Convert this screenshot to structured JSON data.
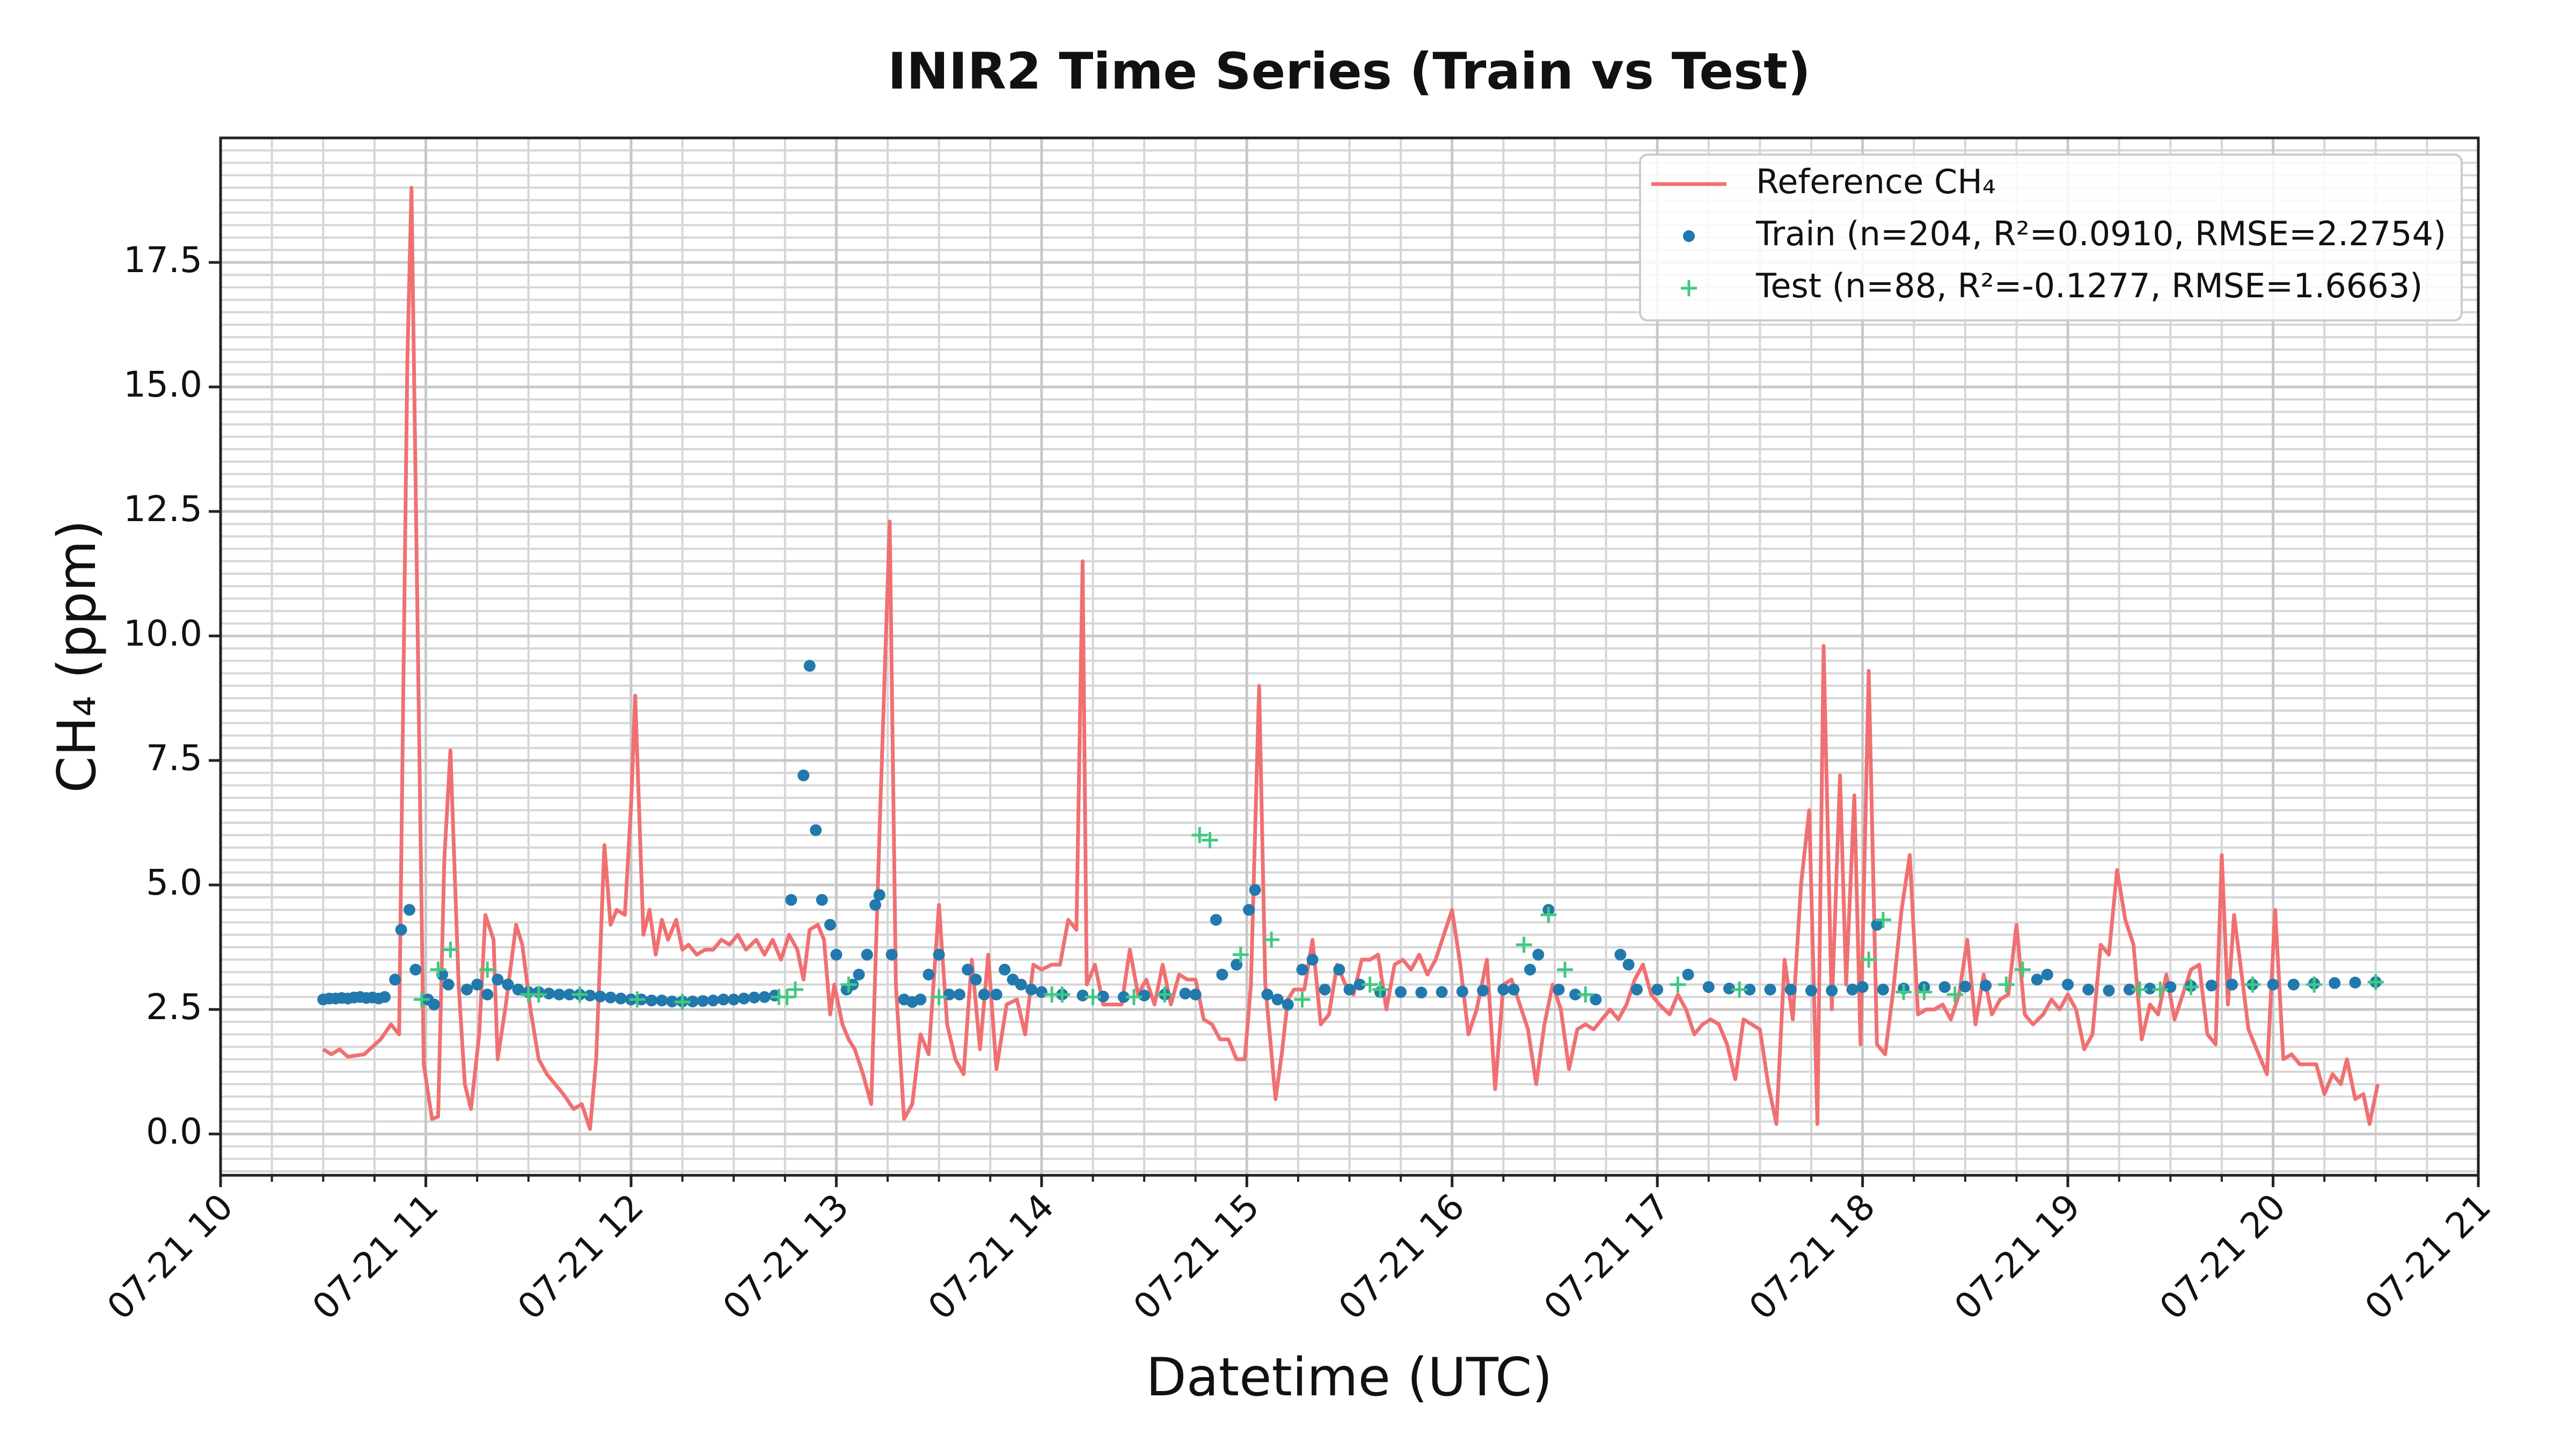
{
  "chart_data": {
    "type": "line",
    "title": "INIR2 Time Series (Train vs Test)",
    "xlabel": "Datetime (UTC)",
    "ylabel": "CH₄ (ppm)",
    "xlim": [
      10,
      21
    ],
    "ylim": [
      -0.83,
      20.0
    ],
    "xticks": [
      {
        "value": 10,
        "label": "07-21 10"
      },
      {
        "value": 11,
        "label": "07-21 11"
      },
      {
        "value": 12,
        "label": "07-21 12"
      },
      {
        "value": 13,
        "label": "07-21 13"
      },
      {
        "value": 14,
        "label": "07-21 14"
      },
      {
        "value": 15,
        "label": "07-21 15"
      },
      {
        "value": 16,
        "label": "07-21 16"
      },
      {
        "value": 17,
        "label": "07-21 17"
      },
      {
        "value": 18,
        "label": "07-21 18"
      },
      {
        "value": 19,
        "label": "07-21 19"
      },
      {
        "value": 20,
        "label": "07-21 20"
      },
      {
        "value": 21,
        "label": "07-21 21"
      }
    ],
    "yticks": [
      {
        "value": 0,
        "label": "0.0"
      },
      {
        "value": 2.5,
        "label": "2.5"
      },
      {
        "value": 5,
        "label": "5.0"
      },
      {
        "value": 7.5,
        "label": "7.5"
      },
      {
        "value": 10,
        "label": "10.0"
      },
      {
        "value": 12.5,
        "label": "12.5"
      },
      {
        "value": 15,
        "label": "15.0"
      },
      {
        "value": 17.5,
        "label": "17.5"
      }
    ],
    "grid": true,
    "minor_grid": true,
    "legend": "upper right",
    "series": [
      {
        "name": "Reference CH₄",
        "type": "line",
        "color": "#f07072",
        "x": [
          10.5,
          10.54,
          10.58,
          10.62,
          10.7,
          10.78,
          10.83,
          10.87,
          10.91,
          10.93,
          10.99,
          11.03,
          11.06,
          11.09,
          11.12,
          11.16,
          11.19,
          11.22,
          11.26,
          11.29,
          11.33,
          11.35,
          11.39,
          11.44,
          11.47,
          11.51,
          11.55,
          11.59,
          11.63,
          11.67,
          11.72,
          11.76,
          11.8,
          11.83,
          11.87,
          11.9,
          11.93,
          11.97,
          12.0,
          12.02,
          12.06,
          12.09,
          12.12,
          12.15,
          12.18,
          12.22,
          12.25,
          12.28,
          12.32,
          12.36,
          12.4,
          12.44,
          12.48,
          12.52,
          12.56,
          12.61,
          12.65,
          12.69,
          12.73,
          12.77,
          12.81,
          12.84,
          12.87,
          12.91,
          12.94,
          12.97,
          12.99,
          13.03,
          13.06,
          13.09,
          13.13,
          13.17,
          13.21,
          13.26,
          13.29,
          13.33,
          13.37,
          13.41,
          13.45,
          13.5,
          13.54,
          13.58,
          13.62,
          13.66,
          13.7,
          13.74,
          13.78,
          13.83,
          13.88,
          13.92,
          13.96,
          14.0,
          14.05,
          14.09,
          14.13,
          14.17,
          14.2,
          14.22,
          14.26,
          14.3,
          14.34,
          14.39,
          14.43,
          14.47,
          14.51,
          14.55,
          14.59,
          14.63,
          14.67,
          14.71,
          14.75,
          14.79,
          14.83,
          14.87,
          14.91,
          14.95,
          14.99,
          15.02,
          15.06,
          15.09,
          15.14,
          15.17,
          15.2,
          15.23,
          15.28,
          15.32,
          15.36,
          15.4,
          15.44,
          15.48,
          15.52,
          15.56,
          15.6,
          15.64,
          15.68,
          15.72,
          15.76,
          15.8,
          15.84,
          15.88,
          15.92,
          15.96,
          16.0,
          16.04,
          16.08,
          16.12,
          16.17,
          16.21,
          16.25,
          16.29,
          16.33,
          16.37,
          16.41,
          16.45,
          16.49,
          16.53,
          16.57,
          16.61,
          16.65,
          16.69,
          16.73,
          16.77,
          16.81,
          16.85,
          16.89,
          16.93,
          16.97,
          17.01,
          17.06,
          17.1,
          17.14,
          17.18,
          17.22,
          17.26,
          17.3,
          17.34,
          17.38,
          17.42,
          17.46,
          17.5,
          17.54,
          17.58,
          17.62,
          17.66,
          17.7,
          17.74,
          17.78,
          17.81,
          17.85,
          17.89,
          17.92,
          17.96,
          17.99,
          18.03,
          18.07,
          18.11,
          18.15,
          18.19,
          18.23,
          18.27,
          18.31,
          18.35,
          18.39,
          18.43,
          18.47,
          18.51,
          18.55,
          18.59,
          18.63,
          18.67,
          18.71,
          18.75,
          18.79,
          18.83,
          18.88,
          18.92,
          18.96,
          19.0,
          19.04,
          19.08,
          19.12,
          19.16,
          19.2,
          19.24,
          19.28,
          19.32,
          19.36,
          19.4,
          19.44,
          19.48,
          19.52,
          19.56,
          19.6,
          19.64,
          19.68,
          19.72,
          19.75,
          19.78,
          19.81,
          19.85,
          19.88,
          19.91,
          19.97,
          20.01,
          20.05,
          20.09,
          20.13,
          20.17,
          20.21,
          20.25,
          20.29,
          20.33,
          20.36,
          20.4,
          20.44,
          20.47,
          20.51
        ],
        "values": [
          1.7,
          1.6,
          1.7,
          1.55,
          1.6,
          1.9,
          2.2,
          2.0,
          15.5,
          19.0,
          1.4,
          0.3,
          0.35,
          5.5,
          7.7,
          3.0,
          1.0,
          0.5,
          2.0,
          4.4,
          3.9,
          1.5,
          2.6,
          4.2,
          3.8,
          2.5,
          1.5,
          1.2,
          1.0,
          0.8,
          0.5,
          0.6,
          0.1,
          1.5,
          5.8,
          4.2,
          4.5,
          4.4,
          6.6,
          8.8,
          4.0,
          4.5,
          3.6,
          4.3,
          3.9,
          4.3,
          3.7,
          3.8,
          3.6,
          3.7,
          3.7,
          3.9,
          3.8,
          4.0,
          3.7,
          3.9,
          3.6,
          3.9,
          3.5,
          4.0,
          3.7,
          3.1,
          4.1,
          4.2,
          3.9,
          2.4,
          3.0,
          2.2,
          1.9,
          1.7,
          1.2,
          0.6,
          6.0,
          12.3,
          3.0,
          0.3,
          0.6,
          2.0,
          1.6,
          4.6,
          2.2,
          1.5,
          1.2,
          3.5,
          1.7,
          3.6,
          1.3,
          2.6,
          2.7,
          2.0,
          3.4,
          3.3,
          3.4,
          3.4,
          4.3,
          4.1,
          11.5,
          3.0,
          3.4,
          2.6,
          2.6,
          2.6,
          3.7,
          2.8,
          3.1,
          2.6,
          3.4,
          2.6,
          3.2,
          3.1,
          3.1,
          2.3,
          2.2,
          1.9,
          1.9,
          1.5,
          1.5,
          3.0,
          9.0,
          3.0,
          0.7,
          1.6,
          2.7,
          2.9,
          2.9,
          3.9,
          2.2,
          2.4,
          3.4,
          3.0,
          2.8,
          3.5,
          3.5,
          3.6,
          2.5,
          3.4,
          3.5,
          3.3,
          3.6,
          3.2,
          3.5,
          4.0,
          4.5,
          3.4,
          2.0,
          2.5,
          3.5,
          0.9,
          3.0,
          3.1,
          2.6,
          2.1,
          1.0,
          2.2,
          3.0,
          2.5,
          1.3,
          2.1,
          2.2,
          2.1,
          2.3,
          2.5,
          2.3,
          2.6,
          3.1,
          3.4,
          2.8,
          2.6,
          2.4,
          2.8,
          2.5,
          2.0,
          2.2,
          2.3,
          2.2,
          1.8,
          1.1,
          2.3,
          2.2,
          2.1,
          1.0,
          0.2,
          3.5,
          2.3,
          5.0,
          6.5,
          0.2,
          9.8,
          2.5,
          7.2,
          3.0,
          6.8,
          1.8,
          9.3,
          1.8,
          1.6,
          2.9,
          4.5,
          5.6,
          2.4,
          2.5,
          2.5,
          2.6,
          2.3,
          2.8,
          3.9,
          2.2,
          3.2,
          2.4,
          2.7,
          2.8,
          4.2,
          2.4,
          2.2,
          2.4,
          2.7,
          2.5,
          2.8,
          2.5,
          1.7,
          2.0,
          3.8,
          3.6,
          5.3,
          4.3,
          3.8,
          1.9,
          2.6,
          2.4,
          3.2,
          2.3,
          2.8,
          3.3,
          3.4,
          2.0,
          1.8,
          5.6,
          2.6,
          4.4,
          3.1,
          2.1,
          1.8,
          1.2,
          4.5,
          1.5,
          1.6,
          1.4,
          1.4,
          1.4,
          0.8,
          1.2,
          1.0,
          1.5,
          0.7,
          0.8,
          0.2,
          1.0
        ]
      },
      {
        "name": "Train (n=204, R²=0.0910, RMSE=2.2754)",
        "type": "scatter",
        "marker": "o",
        "color": "#2279ad",
        "x": [
          10.5,
          10.53,
          10.56,
          10.59,
          10.62,
          10.65,
          10.68,
          10.71,
          10.74,
          10.77,
          10.8,
          10.85,
          10.88,
          10.92,
          10.95,
          11.01,
          11.04,
          11.08,
          11.11,
          11.2,
          11.25,
          11.3,
          11.35,
          11.4,
          11.45,
          11.5,
          11.55,
          11.6,
          11.65,
          11.7,
          11.75,
          11.8,
          11.85,
          11.9,
          11.95,
          12.0,
          12.05,
          12.1,
          12.15,
          12.2,
          12.25,
          12.3,
          12.35,
          12.4,
          12.45,
          12.5,
          12.55,
          12.6,
          12.65,
          12.7,
          12.78,
          12.84,
          12.87,
          12.9,
          12.93,
          12.97,
          13.0,
          13.05,
          13.08,
          13.11,
          13.15,
          13.19,
          13.21,
          13.27,
          13.33,
          13.37,
          13.41,
          13.45,
          13.5,
          13.55,
          13.6,
          13.64,
          13.68,
          13.72,
          13.78,
          13.82,
          13.86,
          13.9,
          13.95,
          14.0,
          14.1,
          14.2,
          14.3,
          14.4,
          14.5,
          14.6,
          14.7,
          14.75,
          14.85,
          14.88,
          14.95,
          15.01,
          15.04,
          15.1,
          15.15,
          15.2,
          15.27,
          15.32,
          15.38,
          15.45,
          15.5,
          15.55,
          15.65,
          15.75,
          15.85,
          15.95,
          16.05,
          16.15,
          16.25,
          16.3,
          16.38,
          16.42,
          16.47,
          16.52,
          16.6,
          16.7,
          16.82,
          16.86,
          16.9,
          17.0,
          17.15,
          17.25,
          17.35,
          17.45,
          17.55,
          17.65,
          17.75,
          17.85,
          17.95,
          18.0,
          18.07,
          18.1,
          18.2,
          18.3,
          18.4,
          18.5,
          18.6,
          18.85,
          18.9,
          19.0,
          19.1,
          19.2,
          19.3,
          19.4,
          19.5,
          19.6,
          19.7,
          19.8,
          19.9,
          20.0,
          20.1,
          20.2,
          20.3,
          20.4,
          20.5
        ],
        "values": [
          2.7,
          2.72,
          2.72,
          2.73,
          2.72,
          2.74,
          2.75,
          2.73,
          2.74,
          2.72,
          2.75,
          3.1,
          4.1,
          4.5,
          3.3,
          2.7,
          2.6,
          3.2,
          3.0,
          2.9,
          3.0,
          2.8,
          3.1,
          3.0,
          2.9,
          2.85,
          2.85,
          2.82,
          2.8,
          2.8,
          2.8,
          2.78,
          2.76,
          2.74,
          2.72,
          2.7,
          2.7,
          2.68,
          2.68,
          2.66,
          2.66,
          2.66,
          2.67,
          2.68,
          2.7,
          2.7,
          2.72,
          2.74,
          2.75,
          2.78,
          4.7,
          7.2,
          9.4,
          6.1,
          4.7,
          4.2,
          3.6,
          2.9,
          3.0,
          3.2,
          3.6,
          4.6,
          4.8,
          3.6,
          2.7,
          2.65,
          2.7,
          3.2,
          3.6,
          2.8,
          2.8,
          3.3,
          3.1,
          2.8,
          2.8,
          3.3,
          3.1,
          3.0,
          2.9,
          2.85,
          2.8,
          2.78,
          2.76,
          2.75,
          2.78,
          2.8,
          2.82,
          2.8,
          4.3,
          3.2,
          3.4,
          4.5,
          4.9,
          2.8,
          2.7,
          2.6,
          3.3,
          3.5,
          2.9,
          3.3,
          2.9,
          3.0,
          2.85,
          2.85,
          2.84,
          2.85,
          2.86,
          2.88,
          2.9,
          2.9,
          3.3,
          3.6,
          4.5,
          2.9,
          2.8,
          2.7,
          3.6,
          3.4,
          2.9,
          2.9,
          3.2,
          2.95,
          2.92,
          2.9,
          2.9,
          2.9,
          2.88,
          2.88,
          2.9,
          2.95,
          4.2,
          2.9,
          2.92,
          2.95,
          2.95,
          2.96,
          2.98,
          3.1,
          3.2,
          3.0,
          2.9,
          2.88,
          2.9,
          2.92,
          2.95,
          2.97,
          2.98,
          3.0,
          3.0,
          3.0,
          3.0,
          3.02,
          3.03,
          3.04,
          3.05
        ]
      },
      {
        "name": "Test (n=88, R²=-0.1277, RMSE=1.6663)",
        "type": "scatter",
        "marker": "+",
        "color": "#40c980",
        "x": [
          10.98,
          11.06,
          11.12,
          11.3,
          11.5,
          11.55,
          11.75,
          12.03,
          12.25,
          12.72,
          12.76,
          12.8,
          13.06,
          13.5,
          14.05,
          14.1,
          14.25,
          14.45,
          14.6,
          14.77,
          14.82,
          14.97,
          15.12,
          15.27,
          15.6,
          15.65,
          16.35,
          16.47,
          16.55,
          16.65,
          17.1,
          17.4,
          18.03,
          18.1,
          18.2,
          18.3,
          18.45,
          18.7,
          18.78,
          19.35,
          19.45,
          19.6,
          19.9,
          20.2,
          20.5
        ],
        "values": [
          2.7,
          3.3,
          3.7,
          3.3,
          2.8,
          2.8,
          2.8,
          2.7,
          2.65,
          2.75,
          2.75,
          2.9,
          3.0,
          2.75,
          2.8,
          2.8,
          2.75,
          2.75,
          2.8,
          6.0,
          5.9,
          3.6,
          3.9,
          2.7,
          3.0,
          2.9,
          3.8,
          4.4,
          3.3,
          2.8,
          3.0,
          2.9,
          3.5,
          4.3,
          2.85,
          2.85,
          2.8,
          3.0,
          3.3,
          2.9,
          2.9,
          2.95,
          3.0,
          3.0,
          3.05
        ]
      }
    ]
  }
}
